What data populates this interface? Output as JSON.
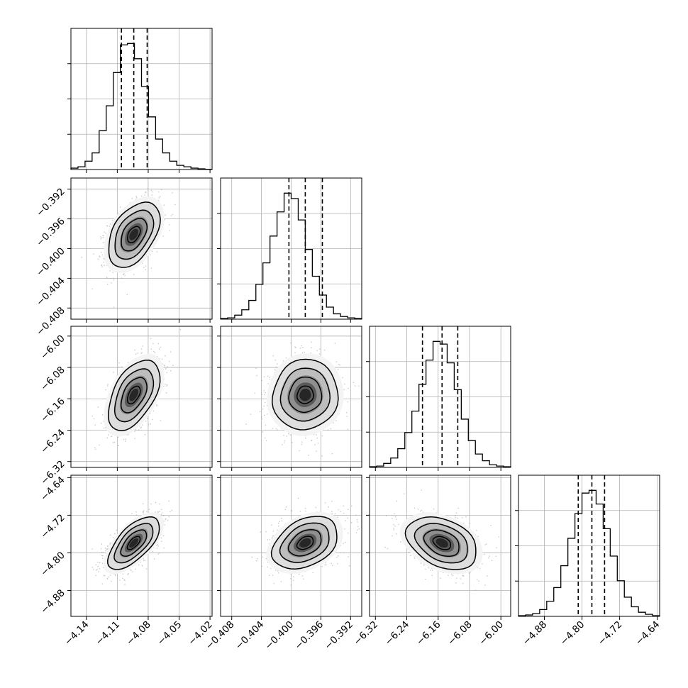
{
  "chart_data": {
    "type": "corner",
    "title": "",
    "grid": true,
    "colors": {
      "hist": "#000000",
      "density": "#000000",
      "points": "#000000",
      "grid": "#b0b0b0"
    },
    "params": [
      {
        "range": [
          -4.155,
          -4.018
        ],
        "ticks": [
          -4.14,
          -4.11,
          -4.08,
          -4.05,
          -4.02
        ],
        "tick_labels": [
          "−4.14",
          "−4.11",
          "−4.08",
          "−4.05",
          "−4.02"
        ],
        "quantiles": [
          -4.106,
          -4.094,
          -4.081
        ],
        "hist_values": [
          1,
          2,
          6,
          12,
          28,
          46,
          70,
          90,
          91,
          80,
          60,
          38,
          22,
          12,
          6,
          3,
          2,
          1,
          0.5,
          0.2
        ]
      },
      {
        "range": [
          -0.4095,
          -0.3905
        ],
        "ticks": [
          -0.392,
          -0.396,
          -0.4,
          -0.404,
          -0.408
        ],
        "tick_labels": [
          "−0.392",
          "−0.396",
          "−0.400",
          "−0.404",
          "−0.408"
        ],
        "x_ticks": [
          -0.408,
          -0.404,
          -0.4,
          -0.396,
          -0.392
        ],
        "x_tick_labels": [
          "−0.408",
          "−0.404",
          "−0.400",
          "−0.396",
          "−0.392"
        ],
        "quantiles": [
          -0.4003,
          -0.3981,
          -0.3958
        ],
        "hist_values": [
          0.5,
          1,
          3,
          7,
          14,
          26,
          42,
          62,
          80,
          94,
          90,
          74,
          52,
          32,
          18,
          9,
          4,
          2,
          1,
          0.5
        ]
      },
      {
        "range": [
          -6.335,
          -5.975
        ],
        "ticks": [
          -6.0,
          -6.08,
          -6.16,
          -6.24,
          -6.32
        ],
        "tick_labels": [
          "−6.00",
          "−6.08",
          "−6.16",
          "−6.24",
          "−6.32"
        ],
        "x_ticks": [
          -6.32,
          -6.24,
          -6.16,
          -6.08,
          -6.0
        ],
        "x_tick_labels": [
          "−6.32",
          "−6.24",
          "−6.16",
          "−6.08",
          "−6.00"
        ],
        "quantiles": [
          -6.2,
          -6.15,
          -6.11
        ],
        "hist_values": [
          0.5,
          1,
          3,
          7,
          14,
          26,
          42,
          62,
          80,
          94,
          92,
          78,
          58,
          36,
          20,
          10,
          5,
          2,
          1,
          0.5
        ]
      },
      {
        "range": [
          -4.935,
          -4.635
        ],
        "ticks": [
          -4.64,
          -4.72,
          -4.8,
          -4.88
        ],
        "tick_labels": [
          "−4.64",
          "−4.72",
          "−4.80",
          "−4.88"
        ],
        "x_ticks": [
          -4.88,
          -4.8,
          -4.72,
          -4.64
        ],
        "x_tick_labels": [
          "−4.88",
          "−4.80",
          "−4.72",
          "−4.64"
        ],
        "quantiles": [
          -4.808,
          -4.779,
          -4.752
        ],
        "hist_values": [
          0.5,
          1,
          2,
          5,
          11,
          21,
          37,
          57,
          75,
          90,
          92,
          82,
          64,
          44,
          26,
          14,
          7,
          3,
          1.5,
          0.5
        ]
      }
    ],
    "pairs": [
      {
        "x": 0,
        "y": 1,
        "mean": [
          -4.094,
          -0.3981
        ],
        "sd": [
          0.0125,
          0.0022
        ],
        "rho": 0.45
      },
      {
        "x": 0,
        "y": 2,
        "mean": [
          -4.094,
          -6.15
        ],
        "sd": [
          0.0125,
          0.045
        ],
        "rho": 0.5
      },
      {
        "x": 1,
        "y": 2,
        "mean": [
          -0.3981,
          -6.15
        ],
        "sd": [
          0.0022,
          0.045
        ],
        "rho": 0.05
      },
      {
        "x": 0,
        "y": 3,
        "mean": [
          -4.094,
          -4.779
        ],
        "sd": [
          0.0125,
          0.028
        ],
        "rho": 0.65
      },
      {
        "x": 1,
        "y": 3,
        "mean": [
          -0.3981,
          -4.779
        ],
        "sd": [
          0.0022,
          0.028
        ],
        "rho": 0.35
      },
      {
        "x": 2,
        "y": 3,
        "mean": [
          -6.15,
          -4.779
        ],
        "sd": [
          0.045,
          0.028
        ],
        "rho": -0.35
      }
    ],
    "contour_levels": [
      0.5,
      1.0,
      1.5,
      2.0
    ]
  }
}
